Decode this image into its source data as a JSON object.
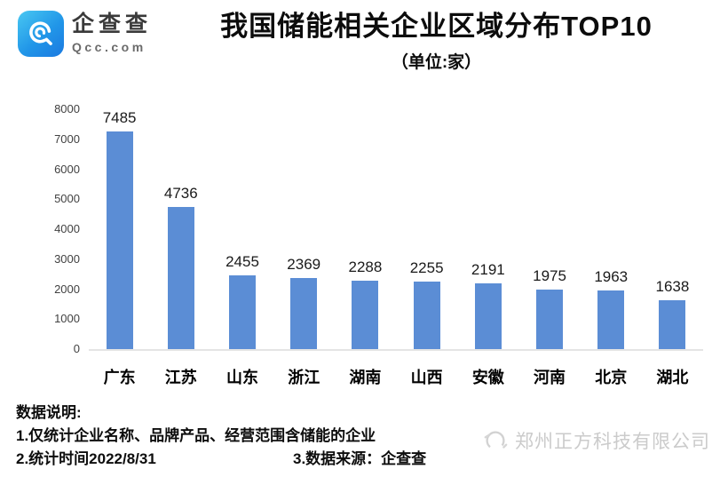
{
  "header": {
    "logo": {
      "name": "企查查",
      "domain": "Qcc.com"
    },
    "title": "我国储能相关企业区域分布TOP10",
    "subtitle": "（单位:家）"
  },
  "chart_data": {
    "type": "bar",
    "title": "我国储能相关企业区域分布TOP10",
    "unit_label": "（单位:家）",
    "categories": [
      "广东",
      "江苏",
      "山东",
      "浙江",
      "湖南",
      "山西",
      "安徽",
      "河南",
      "北京",
      "湖北"
    ],
    "values": [
      7485,
      4736,
      2455,
      2369,
      2288,
      2255,
      2191,
      1975,
      1963,
      1638
    ],
    "ylim": [
      0,
      8000
    ],
    "yticks": [
      0,
      1000,
      2000,
      3000,
      4000,
      5000,
      6000,
      7000,
      8000
    ],
    "grid": false,
    "legend": null,
    "bar_color": "#5B8DD5",
    "xlabel": "",
    "ylabel": ""
  },
  "footer": {
    "notes_heading": "数据说明:",
    "note1": "1.仅统计企业名称、品牌产品、经营范围含储能的企业",
    "note2": "2.统计时间2022/8/31",
    "note3": "3.数据来源：企查查",
    "watermark": "郑州正方科技有限公司"
  }
}
